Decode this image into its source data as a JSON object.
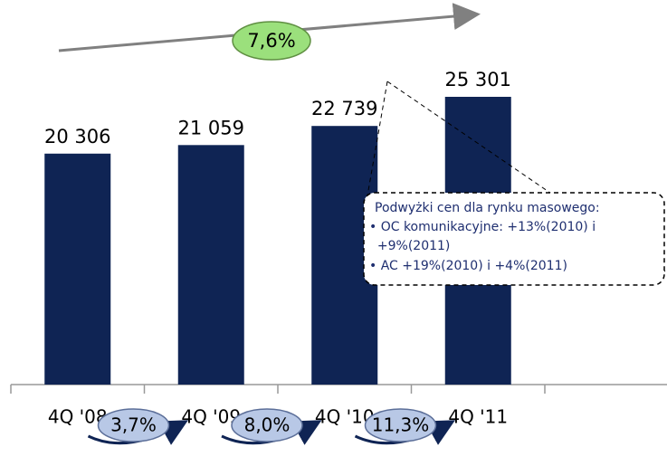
{
  "chart_data": {
    "type": "bar",
    "categories": [
      "4Q '08",
      "4Q '09",
      "4Q '10",
      "4Q '11"
    ],
    "values": [
      20306,
      21059,
      22739,
      25301
    ],
    "value_labels": [
      "20 306",
      "21 059",
      "22 739",
      "25 301"
    ],
    "color": "#0f2454",
    "annotations": {
      "cagr": "7,6%",
      "growth": [
        "3,7%",
        "8,0%",
        "11,3%"
      ],
      "callout": [
        "Podwyżki cen dla rynku masowego:",
        "• OC komunikacyjne: +13%(2010) i",
        "  +9%(2011)",
        "• AC +19%(2010) i +4%(2011)"
      ]
    }
  }
}
